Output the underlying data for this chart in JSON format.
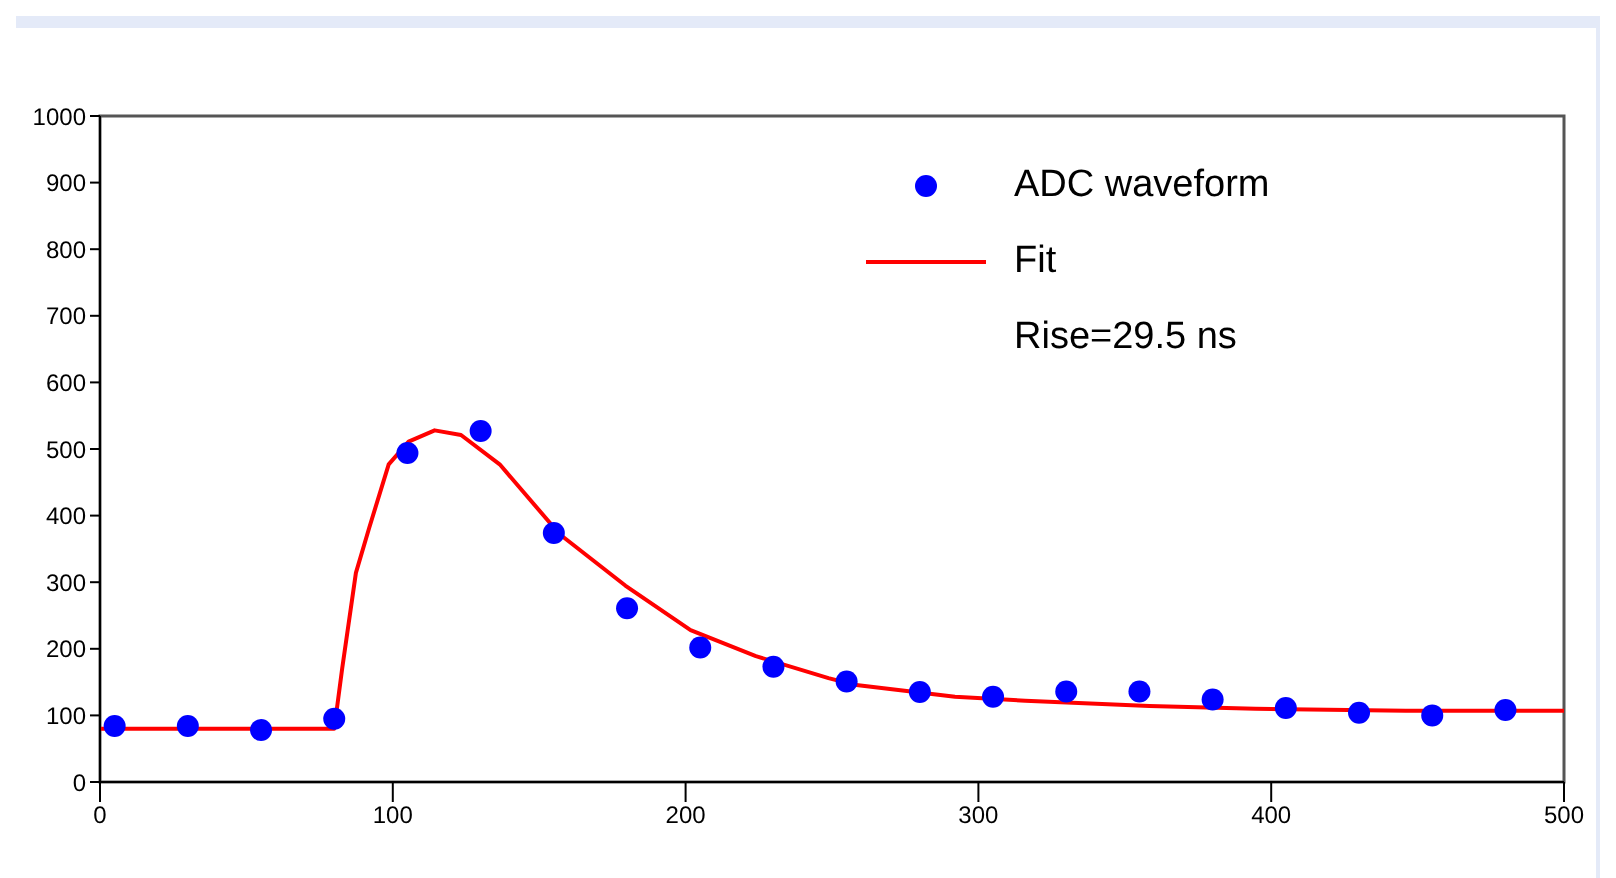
{
  "chart_data": {
    "type": "scatter",
    "xlim": [
      0,
      500
    ],
    "xticks": [
      0,
      100,
      200,
      300,
      400,
      500
    ],
    "ylim": [
      0,
      1000
    ],
    "yticks": [
      0,
      100,
      200,
      300,
      400,
      500,
      600,
      700,
      800,
      900,
      1000
    ],
    "legend": "top right",
    "annotations": [
      "Rise=29.5 ns"
    ],
    "series": [
      {
        "name": "ADC waveform",
        "color": "#0000ff",
        "marker": "circle",
        "x": [
          5,
          30,
          55,
          80,
          105,
          130,
          155,
          180,
          205,
          230,
          255,
          280,
          305,
          330,
          355,
          380,
          405,
          430,
          455,
          480
        ],
        "values": [
          84,
          84,
          78,
          95,
          494,
          527,
          374,
          261,
          202,
          173,
          151,
          135,
          128,
          136,
          136,
          124,
          111,
          104,
          100,
          108
        ]
      },
      {
        "name": "Fit",
        "type": "line",
        "color": "#ff0000",
        "marker": "none",
        "line_style": "solid",
        "x": [
          0,
          80,
          82.7,
          87.4,
          91.9,
          98.6,
          105.4,
          114.3,
          123.3,
          136.5,
          157,
          179.4,
          201.7,
          224,
          248.8,
          257.6,
          292,
          316,
          358.4,
          394.6,
          446,
          500
        ],
        "values": [
          80,
          80,
          170,
          314,
          381,
          477,
          511,
          528,
          521,
          477,
          372,
          295,
          228,
          189,
          156,
          146,
          128,
          122,
          114,
          110,
          107,
          107
        ]
      }
    ]
  }
}
